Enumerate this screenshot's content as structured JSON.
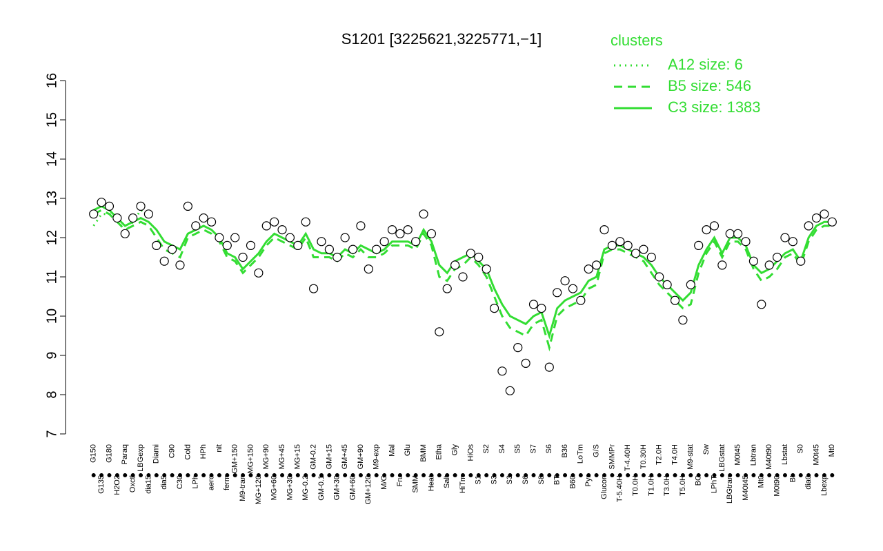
{
  "chart_data": {
    "type": "line",
    "title": "S1201 [3225621,3225771,−1]",
    "legend_title": "clusters",
    "legend_position": "top-right",
    "ylim": [
      7,
      16
    ],
    "yticks": [
      7,
      8,
      9,
      10,
      11,
      12,
      13,
      14,
      15,
      16
    ],
    "categories": [
      "G150",
      "G135",
      "G180",
      "H2O2",
      "Paraq",
      "Oxctl",
      "LBGexp",
      "dia15",
      "Diami",
      "dia5",
      "C90",
      "C30",
      "Cold",
      "LPh",
      "HPh",
      "aero",
      "nit",
      "ferm",
      "GM+150",
      "M9-tran",
      "MG+150",
      "MG+120",
      "MG+90",
      "MG+60",
      "MG+45",
      "MG+30",
      "MG+15",
      "MG-0.2",
      "GM-0.2",
      "GM-0.1",
      "GM+15",
      "GM+30",
      "GM+45",
      "GM+60",
      "GM+90",
      "GM+120",
      "M9-exp",
      "M/G",
      "Mal",
      "Fru",
      "Glu",
      "SMM",
      "BMM",
      "Heat",
      "Etha",
      "Salt",
      "Gly",
      "HiTm",
      "HiOs",
      "S1",
      "S2",
      "S3",
      "S4",
      "S3",
      "S5",
      "S6",
      "S7",
      "S8",
      "S6",
      "BT",
      "B36",
      "B60",
      "LoTm",
      "Pyr",
      "G/S",
      "Glucon",
      "SMMPr",
      "T-5.40H",
      "T-4.40H",
      "T0.0H",
      "T0.30H",
      "T1.0H",
      "T2.0H",
      "T3.0H",
      "T4.0H",
      "T5.0H",
      "M9-stat",
      "BC",
      "Sw",
      "LPhT",
      "LBGstat",
      "LBGtran",
      "M0t45",
      "M40t45",
      "Lbtran",
      "Mt0",
      "M40t90",
      "M0t90",
      "Lbstat",
      "BI",
      "S0",
      "dia0",
      "M0t45",
      "Lbexp",
      "Mt0"
    ],
    "points": {
      "color": "#000000",
      "values": [
        12.6,
        12.9,
        12.8,
        12.5,
        12.1,
        12.5,
        12.8,
        12.6,
        11.8,
        11.4,
        11.7,
        11.3,
        12.8,
        12.3,
        12.5,
        12.4,
        12.0,
        11.8,
        12.0,
        11.5,
        11.8,
        11.1,
        12.3,
        12.4,
        12.2,
        12.0,
        11.8,
        12.4,
        10.7,
        11.9,
        11.7,
        11.5,
        12.0,
        11.7,
        12.3,
        11.2,
        11.7,
        11.9,
        12.2,
        12.1,
        12.2,
        11.9,
        12.6,
        12.1,
        9.6,
        10.7,
        11.3,
        11.0,
        11.6,
        11.5,
        11.2,
        10.2,
        8.6,
        8.1,
        9.2,
        8.8,
        10.3,
        10.2,
        8.7,
        10.6,
        10.9,
        10.7,
        10.4,
        11.2,
        11.3,
        12.2,
        11.8,
        11.9,
        11.8,
        11.6,
        11.7,
        11.5,
        11.0,
        10.8,
        10.4,
        9.9,
        10.8,
        11.8,
        12.2,
        12.3,
        11.3,
        12.1,
        12.1,
        11.9,
        11.4,
        10.3,
        11.3,
        11.5,
        12.0,
        11.9,
        11.4,
        12.3,
        12.5,
        12.6,
        12.4
      ]
    },
    "series": [
      {
        "name": "A12 size: 6",
        "color": "#33dd33",
        "style": "dotted",
        "values": [
          12.3,
          12.6,
          12.6,
          12.5,
          12.1,
          12.4,
          12.7,
          12.6,
          null,
          null,
          null,
          null,
          null,
          null,
          null,
          null,
          null,
          null,
          null,
          null,
          null,
          null,
          null,
          null,
          null,
          null,
          null,
          null,
          null,
          null,
          null,
          null,
          null,
          null,
          null,
          null,
          null,
          null,
          null,
          null,
          null,
          null,
          null,
          null,
          null,
          null,
          null,
          null,
          null,
          null,
          null,
          null,
          null,
          null,
          null,
          null,
          null,
          null,
          null,
          null,
          null,
          null,
          null,
          null,
          null,
          null,
          null,
          null,
          null,
          null,
          null,
          null,
          null,
          null,
          null,
          null,
          null,
          null,
          null,
          null,
          null,
          null,
          null,
          null,
          null,
          null,
          null,
          null,
          null,
          null,
          null,
          null,
          null,
          null,
          null
        ]
      },
      {
        "name": "B5 size: 546",
        "color": "#33dd33",
        "style": "dashed",
        "values": [
          12.6,
          12.7,
          12.6,
          12.4,
          12.2,
          12.3,
          12.4,
          12.3,
          12.0,
          11.7,
          11.6,
          11.5,
          12.0,
          12.1,
          12.2,
          12.1,
          11.9,
          11.5,
          11.4,
          11.1,
          11.3,
          11.5,
          11.8,
          12.0,
          11.9,
          11.8,
          11.7,
          12.0,
          11.5,
          11.5,
          11.5,
          11.4,
          11.6,
          11.5,
          11.7,
          11.5,
          11.5,
          11.6,
          11.8,
          11.8,
          11.8,
          11.7,
          12.1,
          11.8,
          11.0,
          10.9,
          11.2,
          11.3,
          11.5,
          11.3,
          11.0,
          10.5,
          10.0,
          9.7,
          9.6,
          9.5,
          9.8,
          9.9,
          9.2,
          10.0,
          10.2,
          10.3,
          10.4,
          10.7,
          10.8,
          11.6,
          11.7,
          11.7,
          11.6,
          11.5,
          11.4,
          11.1,
          10.8,
          10.6,
          10.4,
          10.2,
          10.3,
          11.1,
          11.6,
          11.9,
          11.5,
          11.9,
          11.9,
          11.7,
          11.2,
          10.9,
          11.0,
          11.2,
          11.5,
          11.6,
          11.3,
          11.9,
          12.2,
          12.3,
          12.3
        ]
      },
      {
        "name": "C3 size: 1383",
        "color": "#33dd33",
        "style": "solid",
        "values": [
          12.7,
          12.8,
          12.7,
          12.5,
          12.3,
          12.4,
          12.5,
          12.4,
          12.2,
          11.9,
          11.8,
          11.7,
          12.1,
          12.2,
          12.3,
          12.2,
          12.0,
          11.6,
          11.5,
          11.2,
          11.4,
          11.6,
          11.9,
          12.1,
          12.0,
          11.9,
          11.8,
          12.1,
          11.7,
          11.6,
          11.6,
          11.5,
          11.7,
          11.6,
          11.8,
          11.7,
          11.6,
          11.7,
          11.9,
          11.9,
          11.9,
          11.8,
          12.2,
          11.9,
          11.3,
          11.1,
          11.4,
          11.5,
          11.6,
          11.4,
          11.2,
          10.7,
          10.3,
          10.0,
          9.9,
          9.8,
          10.0,
          10.1,
          9.5,
          10.2,
          10.4,
          10.5,
          10.6,
          10.9,
          11.0,
          11.7,
          11.8,
          11.8,
          11.7,
          11.6,
          11.5,
          11.3,
          11.0,
          10.8,
          10.6,
          10.4,
          10.6,
          11.3,
          11.7,
          12.0,
          11.6,
          12.0,
          12.0,
          11.8,
          11.3,
          11.1,
          11.2,
          11.4,
          11.6,
          11.7,
          11.4,
          12.0,
          12.3,
          12.4,
          12.4
        ]
      }
    ]
  }
}
